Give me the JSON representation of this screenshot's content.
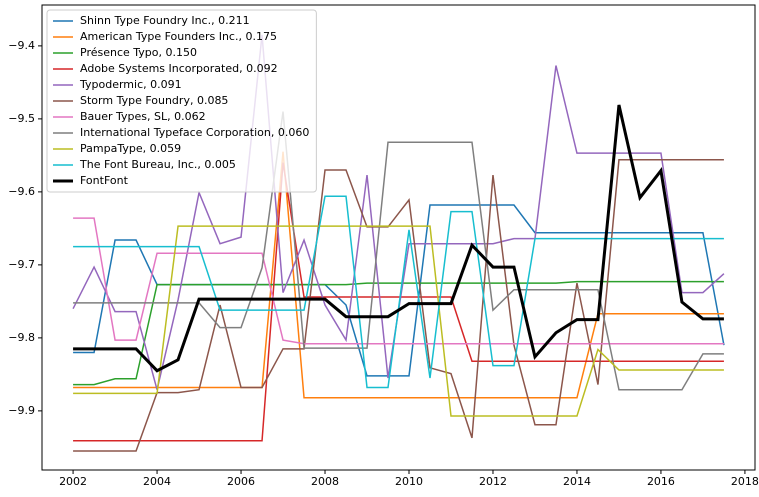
{
  "chart_data": {
    "type": "line",
    "x": [
      2002,
      2002.5,
      2003,
      2003.5,
      2004,
      2004.5,
      2005,
      2005.5,
      2006,
      2006.5,
      2007,
      2007.5,
      2008,
      2008.5,
      2009,
      2009.5,
      2010,
      2010.5,
      2011,
      2011.5,
      2012,
      2012.5,
      2013,
      2013.5,
      2014,
      2014.5,
      2015,
      2015.5,
      2016,
      2016.5,
      2017,
      2017.5
    ],
    "xlim": [
      2001.26,
      2018.24
    ],
    "xticks": [
      2002,
      2004,
      2006,
      2008,
      2010,
      2012,
      2014,
      2016,
      2018
    ],
    "ylim": [
      -9.981,
      -9.344
    ],
    "yticks": [
      {
        "value": -9.9,
        "label": "−9.9"
      },
      {
        "value": -9.8,
        "label": "−9.8"
      },
      {
        "value": -9.7,
        "label": "−9.7"
      },
      {
        "value": -9.6,
        "label": "−9.6"
      },
      {
        "value": -9.5,
        "label": "−9.5"
      },
      {
        "value": -9.4,
        "label": "−9.4"
      }
    ],
    "legend": "upper left",
    "series": [
      {
        "name": "Shinn Type Foundry Inc., 0.211",
        "color": "#1f77b4",
        "values": [
          -9.82,
          -9.82,
          -9.666,
          -9.666,
          -9.727,
          -9.727,
          -9.727,
          -9.727,
          -9.727,
          -9.727,
          -9.727,
          -9.727,
          -9.727,
          -9.755,
          -9.852,
          -9.852,
          -9.852,
          -9.618,
          -9.618,
          -9.618,
          -9.618,
          -9.618,
          -9.656,
          -9.656,
          -9.656,
          -9.656,
          -9.656,
          -9.656,
          -9.656,
          -9.656,
          -9.656,
          -9.81
        ]
      },
      {
        "name": "American Type Founders Inc., 0.175",
        "color": "#ff7f0e",
        "values": [
          -9.868,
          -9.868,
          -9.868,
          -9.868,
          -9.868,
          -9.868,
          -9.868,
          -9.868,
          -9.868,
          -9.868,
          -9.545,
          -9.882,
          -9.882,
          -9.882,
          -9.882,
          -9.882,
          -9.882,
          -9.882,
          -9.882,
          -9.882,
          -9.882,
          -9.882,
          -9.882,
          -9.882,
          -9.882,
          -9.767,
          -9.767,
          -9.767,
          -9.767,
          -9.767,
          -9.767,
          -9.767
        ]
      },
      {
        "name": "Présence Typo, 0.150",
        "color": "#2ca02c",
        "values": [
          -9.864,
          -9.864,
          -9.856,
          -9.856,
          -9.727,
          -9.727,
          -9.727,
          -9.727,
          -9.727,
          -9.727,
          -9.727,
          -9.727,
          -9.727,
          -9.727,
          -9.725,
          -9.725,
          -9.725,
          -9.725,
          -9.725,
          -9.725,
          -9.725,
          -9.725,
          -9.725,
          -9.725,
          -9.723,
          -9.723,
          -9.723,
          -9.723,
          -9.723,
          -9.723,
          -9.723,
          -9.723
        ]
      },
      {
        "name": "Adobe Systems Incorporated, 0.092",
        "color": "#d62728",
        "values": [
          -9.941,
          -9.941,
          -9.941,
          -9.941,
          -9.941,
          -9.941,
          -9.941,
          -9.941,
          -9.941,
          -9.941,
          -9.56,
          -9.744,
          -9.744,
          -9.744,
          -9.744,
          -9.744,
          -9.744,
          -9.744,
          -9.744,
          -9.832,
          -9.832,
          -9.832,
          -9.832,
          -9.832,
          -9.832,
          -9.832,
          -9.832,
          -9.832,
          -9.832,
          -9.832,
          -9.832,
          -9.832
        ]
      },
      {
        "name": "Typodermic, 0.091",
        "color": "#9467bd",
        "values": [
          -9.76,
          -9.703,
          -9.764,
          -9.764,
          -9.871,
          -9.748,
          -9.601,
          -9.671,
          -9.662,
          -9.385,
          -9.738,
          -9.666,
          -9.755,
          -9.803,
          -9.577,
          -9.855,
          -9.671,
          -9.671,
          -9.671,
          -9.671,
          -9.671,
          -9.664,
          -9.664,
          -9.427,
          -9.547,
          -9.547,
          -9.547,
          -9.547,
          -9.547,
          -9.738,
          -9.738,
          -9.712
        ]
      },
      {
        "name": "Storm Type Foundry, 0.085",
        "color": "#8c564b",
        "values": [
          -9.955,
          -9.955,
          -9.955,
          -9.955,
          -9.875,
          -9.875,
          -9.871,
          -9.755,
          -9.868,
          -9.868,
          -9.815,
          -9.815,
          -9.57,
          -9.57,
          -9.648,
          -9.648,
          -9.611,
          -9.841,
          -9.849,
          -9.937,
          -9.577,
          -9.81,
          -9.919,
          -9.919,
          -9.725,
          -9.864,
          -9.556,
          -9.556,
          -9.556,
          -9.556,
          -9.556,
          -9.556
        ]
      },
      {
        "name": "Bauer Types, SL, 0.062",
        "color": "#e377c2",
        "values": [
          -9.636,
          -9.636,
          -9.803,
          -9.803,
          -9.684,
          -9.684,
          -9.684,
          -9.684,
          -9.684,
          -9.684,
          -9.803,
          -9.808,
          -9.808,
          -9.808,
          -9.808,
          -9.808,
          -9.808,
          -9.808,
          -9.808,
          -9.808,
          -9.808,
          -9.808,
          -9.808,
          -9.808,
          -9.808,
          -9.808,
          -9.808,
          -9.808,
          -9.808,
          -9.808,
          -9.808,
          -9.808
        ]
      },
      {
        "name": "International Typeface Corporation, 0.060",
        "color": "#7f7f7f",
        "values": [
          -9.752,
          -9.752,
          -9.752,
          -9.752,
          -9.752,
          -9.752,
          -9.752,
          -9.786,
          -9.786,
          -9.704,
          -9.49,
          -9.814,
          -9.814,
          -9.814,
          -9.814,
          -9.532,
          -9.532,
          -9.532,
          -9.532,
          -9.532,
          -9.762,
          -9.734,
          -9.734,
          -9.734,
          -9.734,
          -9.734,
          -9.871,
          -9.871,
          -9.871,
          -9.871,
          -9.822,
          -9.822
        ]
      },
      {
        "name": "PampaType, 0.059",
        "color": "#bcbd22",
        "values": [
          -9.876,
          -9.876,
          -9.876,
          -9.876,
          -9.876,
          -9.647,
          -9.647,
          -9.647,
          -9.647,
          -9.647,
          -9.647,
          -9.647,
          -9.647,
          -9.647,
          -9.647,
          -9.647,
          -9.647,
          -9.647,
          -9.907,
          -9.907,
          -9.907,
          -9.907,
          -9.907,
          -9.907,
          -9.907,
          -9.816,
          -9.844,
          -9.844,
          -9.844,
          -9.844,
          -9.844,
          -9.844
        ]
      },
      {
        "name": "The Font Bureau, Inc., 0.005",
        "color": "#17becf",
        "values": [
          -9.675,
          -9.675,
          -9.675,
          -9.675,
          -9.675,
          -9.675,
          -9.675,
          -9.762,
          -9.762,
          -9.762,
          -9.762,
          -9.762,
          -9.606,
          -9.606,
          -9.868,
          -9.868,
          -9.652,
          -9.855,
          -9.627,
          -9.627,
          -9.838,
          -9.838,
          -9.664,
          -9.664,
          -9.664,
          -9.664,
          -9.664,
          -9.664,
          -9.664,
          -9.664,
          -9.664,
          -9.664
        ]
      },
      {
        "name": "FontFont",
        "color": "#000000",
        "width": 3,
        "values": [
          -9.815,
          -9.815,
          -9.815,
          -9.815,
          -9.845,
          -9.83,
          -9.747,
          -9.747,
          -9.747,
          -9.747,
          -9.747,
          -9.747,
          -9.747,
          -9.771,
          -9.771,
          -9.771,
          -9.753,
          -9.753,
          -9.753,
          -9.673,
          -9.703,
          -9.703,
          -9.826,
          -9.793,
          -9.775,
          -9.775,
          -9.481,
          -9.608,
          -9.571,
          -9.751,
          -9.774,
          -9.774
        ]
      }
    ]
  }
}
